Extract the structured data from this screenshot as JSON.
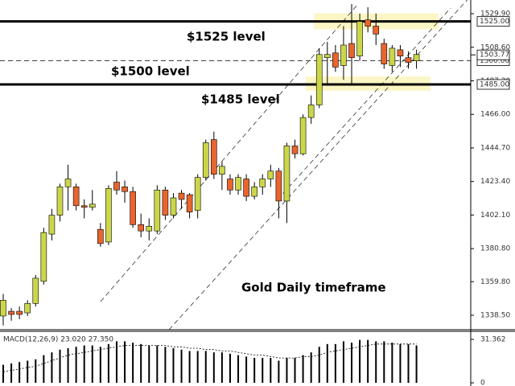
{
  "chart_data": {
    "type": "candlestick",
    "annotations": [
      "$1525 level",
      "$1500 level",
      "$1485 level",
      "Gold Daily timeframe"
    ],
    "open": [
      1338,
      1341,
      1341,
      1340,
      1346,
      1360,
      1390,
      1402,
      1420,
      1420,
      1408,
      1407,
      1393,
      1385,
      1423,
      1420,
      1417,
      1396,
      1392,
      1392,
      1418,
      1402,
      1416,
      1415,
      1405,
      1426,
      1450,
      1428,
      1425,
      1418,
      1425,
      1414,
      1420,
      1425,
      1430,
      1411,
      1446,
      1441,
      1464,
      1472,
      1502,
      1505,
      1497,
      1511,
      1503,
      1526,
      1522,
      1511,
      1497,
      1507,
      1502,
      1500
    ],
    "high": [
      1352,
      1343,
      1344,
      1348,
      1364,
      1394,
      1406,
      1422,
      1434,
      1422,
      1412,
      1418,
      1397,
      1421,
      1430,
      1424,
      1420,
      1403,
      1400,
      1421,
      1420,
      1416,
      1418,
      1416,
      1428,
      1450,
      1455,
      1436,
      1428,
      1428,
      1428,
      1423,
      1428,
      1434,
      1432,
      1448,
      1450,
      1466,
      1478,
      1508,
      1512,
      1510,
      1522,
      1536,
      1530,
      1534,
      1530,
      1514,
      1510,
      1510,
      1506,
      1507
    ],
    "low": [
      1332,
      1335,
      1336,
      1338,
      1344,
      1358,
      1386,
      1398,
      1405,
      1405,
      1400,
      1405,
      1382,
      1383,
      1415,
      1410,
      1394,
      1388,
      1386,
      1390,
      1399,
      1400,
      1406,
      1400,
      1400,
      1424,
      1425,
      1418,
      1415,
      1415,
      1411,
      1412,
      1415,
      1420,
      1400,
      1397,
      1438,
      1440,
      1460,
      1470,
      1485,
      1493,
      1488,
      1485,
      1500,
      1518,
      1510,
      1495,
      1493,
      1496,
      1495,
      1495
    ],
    "close": [
      1348,
      1339,
      1339,
      1346,
      1362,
      1391,
      1402,
      1420,
      1425,
      1408,
      1407,
      1409,
      1384,
      1419,
      1418,
      1417,
      1396,
      1392,
      1395,
      1418,
      1402,
      1413,
      1412,
      1404,
      1426,
      1448,
      1428,
      1433,
      1418,
      1426,
      1414,
      1420,
      1425,
      1430,
      1411,
      1446,
      1441,
      1464,
      1472,
      1504,
      1504,
      1496,
      1510,
      1502,
      1525,
      1522,
      1517,
      1498,
      1508,
      1503,
      1499,
      1504
    ],
    "bull_color": "#cbd64a",
    "bear_color": "#e8652e",
    "ylim": [
      1329.3,
      1538.6
    ],
    "yticks": [
      {
        "value": 1529.9,
        "label": "1529.90"
      },
      {
        "value": 1508.6,
        "label": "1508.60"
      },
      {
        "value": 1487.3,
        "label": "1487.30"
      },
      {
        "value": 1466,
        "label": "1466.00"
      },
      {
        "value": 1444.7,
        "label": "1444.70"
      },
      {
        "value": 1423.4,
        "label": "1423.40"
      },
      {
        "value": 1402.1,
        "label": "1402.10"
      },
      {
        "value": 1380.8,
        "label": "1380.80"
      },
      {
        "value": 1359.8,
        "label": "1359.80"
      },
      {
        "value": 1338.5,
        "label": "1338.50"
      }
    ],
    "levels": [
      {
        "value": 1525,
        "label": "1525.00",
        "style": "solid"
      },
      {
        "value": 1500,
        "label": "1500.00",
        "style": "dashed"
      },
      {
        "value": 1485,
        "label": "1485.00",
        "style": "solid"
      }
    ],
    "current_price": {
      "value": 1503.77,
      "label": "1503.77"
    },
    "zones": [
      [
        1520,
        1530
      ],
      [
        1481,
        1490
      ]
    ],
    "macd": {
      "label": "MACD(12,26,9) 23.020 27.350",
      "histogram": [
        13,
        14,
        15,
        16,
        17,
        20,
        22,
        24,
        25,
        26,
        27,
        27,
        26,
        28,
        30,
        30,
        29,
        28,
        27,
        27,
        26,
        25,
        24,
        23,
        23,
        23,
        22,
        22,
        21,
        20,
        19,
        18,
        18,
        18,
        16,
        18,
        18,
        20,
        22,
        26,
        28,
        28,
        30,
        29,
        31,
        31,
        30,
        30,
        29,
        28,
        28,
        27
      ],
      "signal": [
        8,
        9,
        10,
        11,
        12,
        14,
        16,
        18,
        20,
        21,
        22,
        23,
        24,
        25,
        26,
        27,
        27,
        27,
        27,
        27,
        27,
        26,
        26,
        25,
        25,
        24,
        24,
        23,
        23,
        22,
        21,
        20,
        20,
        19,
        18,
        18,
        18,
        19,
        19,
        20,
        22,
        23,
        24,
        25,
        26,
        27,
        28,
        28,
        28,
        28,
        28,
        28
      ],
      "ylim": [
        -2.3,
        37.2
      ],
      "yticks": [
        {
          "value": 31.362,
          "label": "31.362"
        },
        0
      ]
    }
  }
}
